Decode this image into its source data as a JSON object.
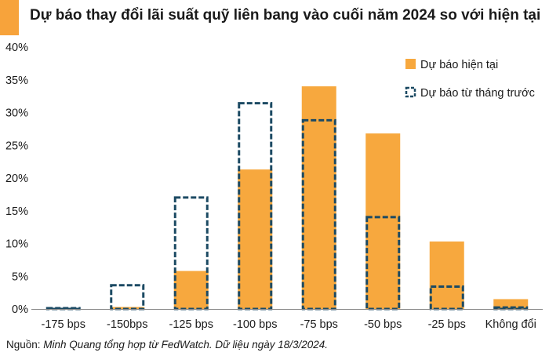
{
  "title": "Dự báo thay đổi lãi suất quỹ liên bang vào cuối năm 2024 so với hiện tại",
  "source": {
    "prefix": "Nguồn: ",
    "text": "Minh Quang tổng hợp từ FedWatch. Dữ liệu ngày 18/3/2024."
  },
  "colors": {
    "accent": "#F7A33B",
    "current": "#F7A83E",
    "previous": "#1C4A63",
    "axis": "#888888"
  },
  "chart_data": {
    "type": "bar",
    "title": "Dự báo thay đổi lãi suất quỹ liên bang vào cuối năm 2024 so với hiện tại",
    "categories": [
      "-175 bps",
      "-150bps",
      "-125 bps",
      "-100 bps",
      "-75 bps",
      "-50 bps",
      "-25 bps",
      "Không đổi"
    ],
    "series": [
      {
        "name": "Dự báo hiện tại",
        "style": "solid",
        "values": [
          0,
          0.3,
          5.8,
          21.3,
          34.0,
          26.8,
          10.3,
          1.5
        ]
      },
      {
        "name": "Dự báo từ tháng trước",
        "style": "dashed-outline",
        "values": [
          0.3,
          3.8,
          17.2,
          31.6,
          29.0,
          14.2,
          3.6,
          0.4
        ]
      }
    ],
    "y_ticks": [
      "0%",
      "5%",
      "10%",
      "15%",
      "20%",
      "25%",
      "30%",
      "35%",
      "40%"
    ],
    "ylim": [
      0,
      40
    ],
    "xlabel": "",
    "ylabel": "",
    "legend_position": "top-right",
    "grid": false
  }
}
